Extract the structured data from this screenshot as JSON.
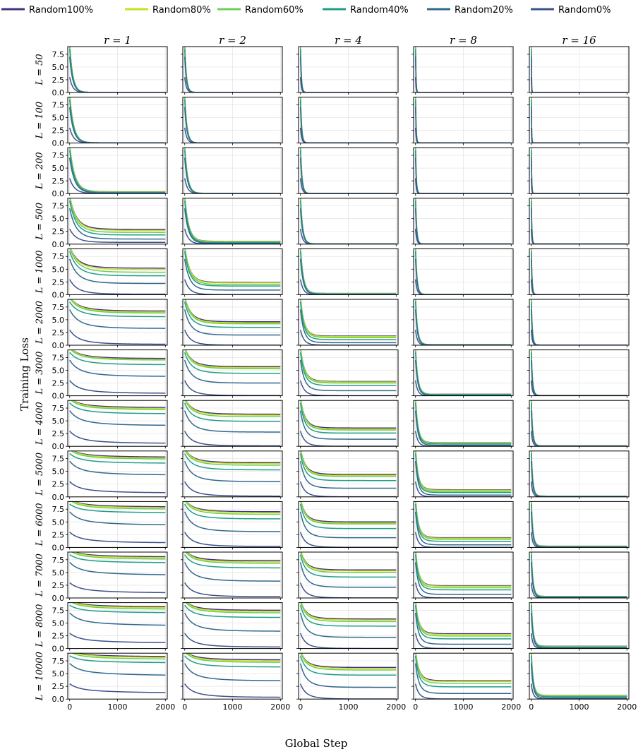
{
  "chart_data": {
    "type": "line",
    "title": "",
    "xlabel": "Global Step",
    "ylabel": "Training Loss",
    "xlim": [
      -40,
      2040
    ],
    "ylim": [
      0,
      9
    ],
    "x_ticks": [
      0,
      1000,
      2000
    ],
    "x_tick_labels": [
      "0",
      "1000",
      "2000"
    ],
    "y_ticks": [
      0,
      2.5,
      5,
      7.5
    ],
    "y_tick_labels": [
      "0.0",
      "2.5",
      "5.0",
      "7.5"
    ],
    "grid": true,
    "legend_position": "top",
    "columns": [
      {
        "label": "r = 1",
        "r": 1
      },
      {
        "label": "r = 2",
        "r": 2
      },
      {
        "label": "r = 4",
        "r": 4
      },
      {
        "label": "r = 8",
        "r": 8
      },
      {
        "label": "r = 16",
        "r": 16
      }
    ],
    "rows": [
      {
        "label": "L = 50",
        "L": 50
      },
      {
        "label": "L = 100",
        "L": 100
      },
      {
        "label": "L = 200",
        "L": 200
      },
      {
        "label": "L = 500",
        "L": 500
      },
      {
        "label": "L = 1000",
        "L": 1000
      },
      {
        "label": "L = 2000",
        "L": 2000
      },
      {
        "label": "L = 3000",
        "L": 3000
      },
      {
        "label": "L = 4000",
        "L": 4000
      },
      {
        "label": "L = 5000",
        "L": 5000
      },
      {
        "label": "L = 6000",
        "L": 6000
      },
      {
        "label": "L = 7000",
        "L": 7000
      },
      {
        "label": "L = 8000",
        "L": 8000
      },
      {
        "label": "L = 10000",
        "L": 10000
      }
    ],
    "series": [
      {
        "name": "Random100%",
        "color": "#46327e",
        "initial_loss": 9.5,
        "final_loss": [
          [
            0.02,
            0.02,
            0.02,
            0.02,
            0.02
          ],
          [
            0.05,
            0.02,
            0.02,
            0.02,
            0.02
          ],
          [
            0.35,
            0.05,
            0.02,
            0.02,
            0.02
          ],
          [
            2.9,
            0.55,
            0.05,
            0.02,
            0.02
          ],
          [
            5.2,
            2.4,
            0.25,
            0.05,
            0.02
          ],
          [
            6.7,
            4.6,
            1.8,
            0.12,
            0.04
          ],
          [
            7.3,
            5.7,
            2.8,
            0.3,
            0.06
          ],
          [
            7.6,
            6.3,
            3.6,
            0.7,
            0.1
          ],
          [
            7.8,
            6.7,
            4.4,
            1.4,
            0.15
          ],
          [
            7.95,
            7.0,
            5.0,
            1.9,
            0.25
          ],
          [
            8.05,
            7.3,
            5.5,
            2.4,
            0.3
          ],
          [
            8.15,
            7.5,
            5.8,
            2.9,
            0.45
          ],
          [
            8.3,
            7.7,
            6.2,
            3.6,
            0.7
          ]
        ]
      },
      {
        "name": "Random80%",
        "color": "#c7e020",
        "initial_loss": 9.5,
        "final_loss": [
          [
            0.02,
            0.02,
            0.02,
            0.02,
            0.02
          ],
          [
            0.05,
            0.02,
            0.02,
            0.02,
            0.02
          ],
          [
            0.3,
            0.05,
            0.02,
            0.02,
            0.02
          ],
          [
            2.7,
            0.5,
            0.05,
            0.02,
            0.02
          ],
          [
            4.9,
            2.3,
            0.22,
            0.05,
            0.02
          ],
          [
            6.5,
            4.4,
            1.7,
            0.12,
            0.04
          ],
          [
            7.1,
            5.5,
            2.7,
            0.28,
            0.06
          ],
          [
            7.4,
            6.1,
            3.4,
            0.65,
            0.1
          ],
          [
            7.6,
            6.5,
            4.2,
            1.3,
            0.14
          ],
          [
            7.75,
            6.8,
            4.8,
            1.8,
            0.22
          ],
          [
            7.85,
            7.05,
            5.3,
            2.3,
            0.28
          ],
          [
            7.95,
            7.25,
            5.6,
            2.75,
            0.4
          ],
          [
            8.1,
            7.45,
            6.0,
            3.45,
            0.65
          ]
        ]
      },
      {
        "name": "Random60%",
        "color": "#6ece58",
        "initial_loss": 9.3,
        "final_loss": [
          [
            0.02,
            0.02,
            0.02,
            0.02,
            0.02
          ],
          [
            0.04,
            0.02,
            0.02,
            0.02,
            0.02
          ],
          [
            0.25,
            0.04,
            0.02,
            0.02,
            0.02
          ],
          [
            2.3,
            0.4,
            0.04,
            0.02,
            0.02
          ],
          [
            4.4,
            2.0,
            0.2,
            0.04,
            0.02
          ],
          [
            6.3,
            4.2,
            1.5,
            0.1,
            0.03
          ],
          [
            7.0,
            5.3,
            2.5,
            0.25,
            0.05
          ],
          [
            7.2,
            5.8,
            3.2,
            0.55,
            0.08
          ],
          [
            7.4,
            6.2,
            4.0,
            1.1,
            0.12
          ],
          [
            7.5,
            6.5,
            4.6,
            1.6,
            0.18
          ],
          [
            7.6,
            6.8,
            5.0,
            2.0,
            0.25
          ],
          [
            7.7,
            7.0,
            5.3,
            2.45,
            0.35
          ],
          [
            7.8,
            7.2,
            5.7,
            3.1,
            0.55
          ]
        ]
      },
      {
        "name": "Random40%",
        "color": "#1f9e89",
        "initial_loss": 8.5,
        "final_loss": [
          [
            0.02,
            0.02,
            0.02,
            0.02,
            0.02
          ],
          [
            0.03,
            0.02,
            0.02,
            0.02,
            0.02
          ],
          [
            0.2,
            0.03,
            0.02,
            0.02,
            0.02
          ],
          [
            1.8,
            0.3,
            0.03,
            0.02,
            0.02
          ],
          [
            3.7,
            1.7,
            0.15,
            0.03,
            0.02
          ],
          [
            5.6,
            3.5,
            1.1,
            0.08,
            0.03
          ],
          [
            6.1,
            4.4,
            2.0,
            0.2,
            0.04
          ],
          [
            6.4,
            4.9,
            2.6,
            0.45,
            0.06
          ],
          [
            6.6,
            5.3,
            3.2,
            0.85,
            0.1
          ],
          [
            6.8,
            5.6,
            3.7,
            1.2,
            0.14
          ],
          [
            6.9,
            5.9,
            4.1,
            1.6,
            0.2
          ],
          [
            7.0,
            6.1,
            4.4,
            1.9,
            0.28
          ],
          [
            7.1,
            6.3,
            4.7,
            2.4,
            0.45
          ]
        ]
      },
      {
        "name": "Random20%",
        "color": "#31688e",
        "initial_loss": 7.0,
        "final_loss": [
          [
            0.02,
            0.02,
            0.02,
            0.02,
            0.02
          ],
          [
            0.02,
            0.02,
            0.02,
            0.02,
            0.02
          ],
          [
            0.1,
            0.02,
            0.02,
            0.02,
            0.02
          ],
          [
            1.0,
            0.15,
            0.02,
            0.02,
            0.02
          ],
          [
            2.2,
            0.9,
            0.08,
            0.02,
            0.02
          ],
          [
            3.3,
            2.0,
            0.5,
            0.04,
            0.02
          ],
          [
            3.8,
            2.5,
            1.0,
            0.1,
            0.03
          ],
          [
            4.1,
            2.8,
            1.4,
            0.2,
            0.04
          ],
          [
            4.3,
            3.0,
            1.7,
            0.35,
            0.06
          ],
          [
            4.4,
            3.1,
            1.9,
            0.5,
            0.08
          ],
          [
            4.5,
            3.3,
            2.1,
            0.7,
            0.1
          ],
          [
            4.5,
            3.4,
            2.2,
            0.85,
            0.13
          ],
          [
            4.6,
            3.6,
            2.3,
            1.1,
            0.2
          ]
        ]
      },
      {
        "name": "Random0%",
        "color": "#3b528b",
        "initial_loss": 3.0,
        "final_loss": [
          [
            0.02,
            0.02,
            0.02,
            0.02,
            0.02
          ],
          [
            0.02,
            0.02,
            0.02,
            0.02,
            0.02
          ],
          [
            0.02,
            0.02,
            0.02,
            0.02,
            0.02
          ],
          [
            0.35,
            0.02,
            0.02,
            0.02,
            0.02
          ],
          [
            0.1,
            0.02,
            0.02,
            0.02,
            0.02
          ],
          [
            0.2,
            0.02,
            0.02,
            0.02,
            0.02
          ],
          [
            0.5,
            0.05,
            0.02,
            0.02,
            0.02
          ],
          [
            0.6,
            0.1,
            0.02,
            0.02,
            0.02
          ],
          [
            0.8,
            0.15,
            0.02,
            0.02,
            0.02
          ],
          [
            0.9,
            0.2,
            0.02,
            0.02,
            0.02
          ],
          [
            1.0,
            0.25,
            0.02,
            0.02,
            0.02
          ],
          [
            1.1,
            0.3,
            0.02,
            0.02,
            0.02
          ],
          [
            1.2,
            0.35,
            0.02,
            0.02,
            0.02
          ]
        ]
      }
    ]
  }
}
